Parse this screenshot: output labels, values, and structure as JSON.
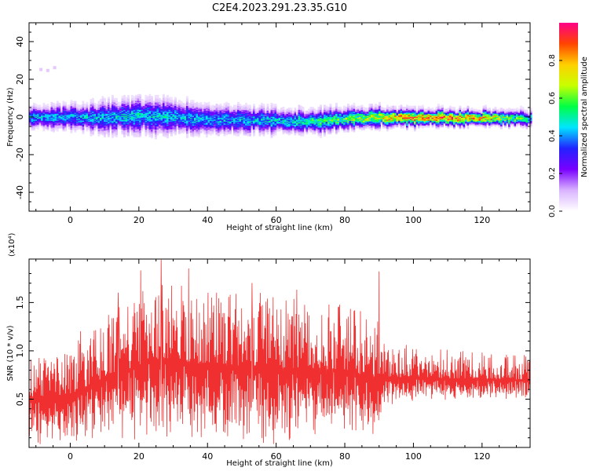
{
  "title": "C2E4.2023.291.23.35.G10",
  "chart_data": [
    {
      "type": "heatmap",
      "xlabel": "Height of straight line (km)",
      "ylabel": "Frequency (Hz)",
      "xlim": [
        -12,
        134
      ],
      "ylim": [
        -50,
        50
      ],
      "xticks": [
        0,
        20,
        40,
        60,
        80,
        100,
        120
      ],
      "yticks": [
        -40,
        -20,
        0,
        20,
        40
      ],
      "colorbar": {
        "label": "Normalized spectral amplitude",
        "range": [
          0,
          1
        ],
        "ticks": [
          "0.0",
          "0.2",
          "0.4",
          "0.6",
          "0.8"
        ],
        "colors": [
          "#ffffff",
          "#d9b3ff",
          "#7a00ff",
          "#2222ff",
          "#00e5ff",
          "#00ff44",
          "#c8ff00",
          "#ffd000",
          "#ff4400",
          "#ff0088"
        ]
      },
      "band": {
        "center_hz": [
          [
            -12,
            0.3
          ],
          [
            0,
            0.5
          ],
          [
            10,
            0.2
          ],
          [
            20,
            1.0
          ],
          [
            30,
            0.5
          ],
          [
            40,
            -1.0
          ],
          [
            50,
            -1.0
          ],
          [
            60,
            -1.5
          ],
          [
            70,
            -2.0
          ],
          [
            80,
            -0.5
          ],
          [
            90,
            0.3
          ],
          [
            100,
            0.2
          ],
          [
            110,
            0.0
          ],
          [
            120,
            0.0
          ],
          [
            134,
            -0.5
          ]
        ],
        "halfwidth_hz": [
          [
            -12,
            5
          ],
          [
            0,
            6
          ],
          [
            10,
            7
          ],
          [
            20,
            8
          ],
          [
            30,
            8
          ],
          [
            40,
            6
          ],
          [
            60,
            6
          ],
          [
            80,
            5
          ],
          [
            100,
            4
          ],
          [
            120,
            3.5
          ],
          [
            134,
            3.5
          ]
        ],
        "peak_amplitude": [
          [
            -12,
            0.45
          ],
          [
            0,
            0.45
          ],
          [
            20,
            0.48
          ],
          [
            40,
            0.45
          ],
          [
            60,
            0.48
          ],
          [
            80,
            0.62
          ],
          [
            100,
            0.9
          ],
          [
            120,
            0.9
          ],
          [
            134,
            0.5
          ]
        ]
      }
    },
    {
      "type": "line",
      "xlabel": "Height of straight line (km)",
      "ylabel": "SNR (10 * v/v)",
      "multiplier": "(x10⁴)",
      "xlim": [
        -12,
        134
      ],
      "ylim": [
        0,
        1.95
      ],
      "xticks": [
        0,
        20,
        40,
        60,
        80,
        100,
        120
      ],
      "yticks": [
        "0.5",
        "1.0",
        "1.5"
      ],
      "color": "#f03030",
      "envelope": {
        "x": [
          -12,
          0,
          10,
          20,
          27,
          40,
          55,
          65,
          80,
          90,
          91,
          100,
          115,
          134
        ],
        "baseline": [
          0.28,
          0.25,
          0.3,
          0.3,
          0.3,
          0.3,
          0.28,
          0.28,
          0.3,
          0.3,
          0.55,
          0.6,
          0.62,
          0.65
        ],
        "peak": [
          0.95,
          1.05,
          1.35,
          1.6,
          1.75,
          1.6,
          1.6,
          1.55,
          1.5,
          1.3,
          1.1,
          1.05,
          1.0,
          0.95
        ]
      },
      "highlights": [
        {
          "x": 3,
          "y": 1.2
        },
        {
          "x": 14,
          "y": 1.6
        },
        {
          "x": 20.5,
          "y": 1.83
        },
        {
          "x": 26.5,
          "y": 1.94
        },
        {
          "x": 34.5,
          "y": 1.85
        },
        {
          "x": 53,
          "y": 1.7
        },
        {
          "x": 66,
          "y": 1.63
        },
        {
          "x": 90,
          "y": 1.82
        }
      ]
    }
  ]
}
